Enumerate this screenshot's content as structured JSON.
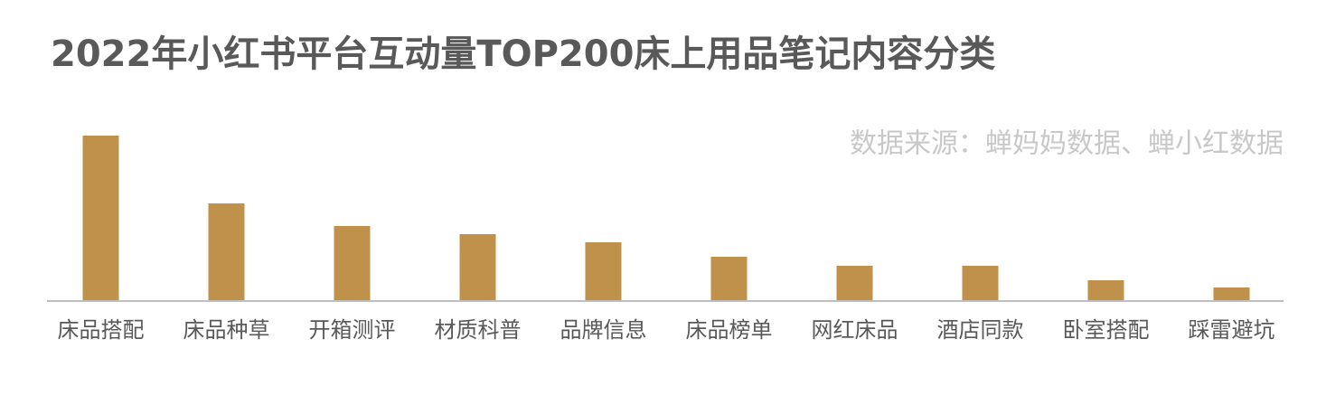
{
  "chart_data": {
    "type": "bar",
    "title": "2022年小红书平台互动量TOP200床上用品笔记内容分类",
    "source": "数据来源：蝉妈妈数据、蝉小红数据",
    "categories": [
      "床品搭配",
      "床品种草",
      "开箱测评",
      "材质科普",
      "品牌信息",
      "床品榜单",
      "网红床品",
      "酒店同款",
      "卧室搭配",
      "踩雷避坑"
    ],
    "values": [
      182,
      107,
      82,
      73,
      64,
      48,
      38,
      38,
      22,
      14
    ],
    "color": "#bf914b"
  }
}
